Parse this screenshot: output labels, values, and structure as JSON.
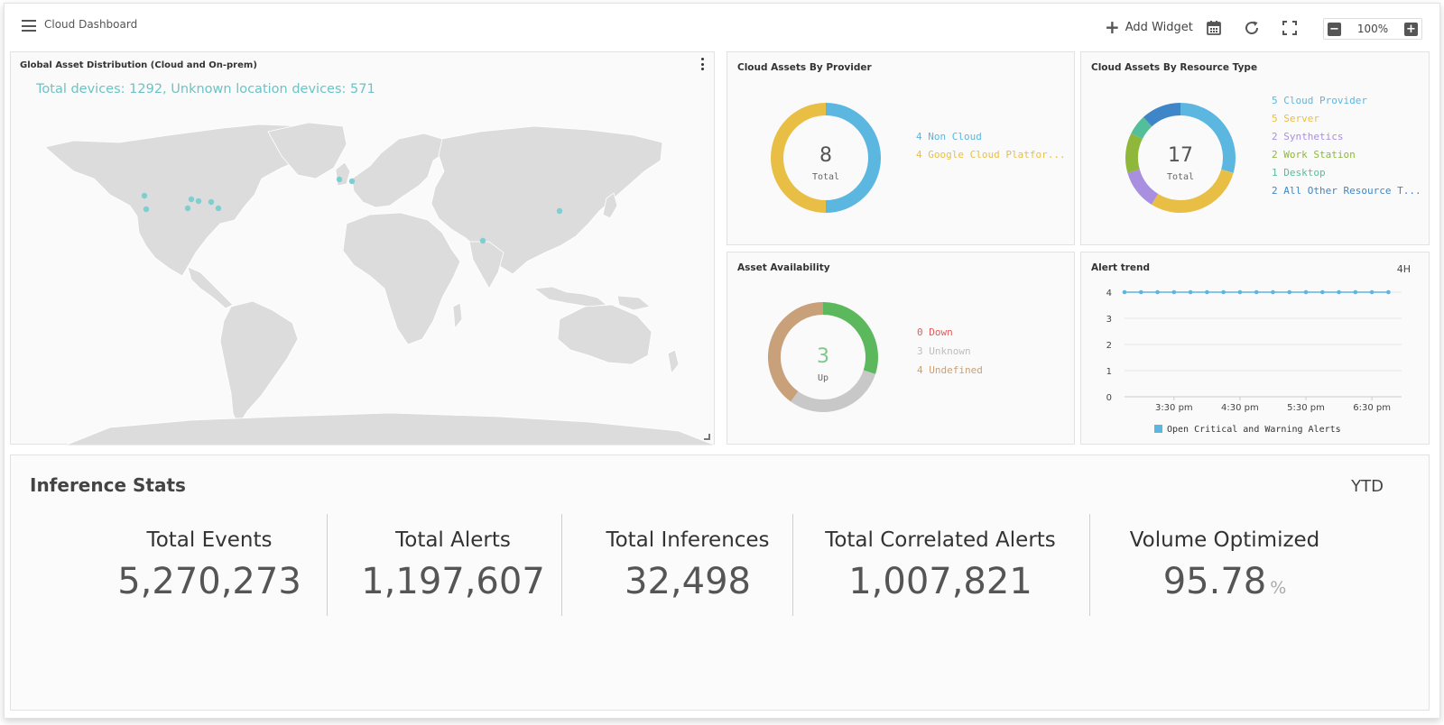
{
  "header": {
    "title": "Cloud Dashboard",
    "add_widget_label": "Add Widget",
    "zoom_value": "100%"
  },
  "icons": {
    "menu": "hamburger-icon",
    "add": "plus-icon",
    "calendar": "calendar-icon",
    "refresh": "refresh-icon",
    "fullscreen": "fullscreen-icon",
    "zoom_out": "minus-icon",
    "zoom_in": "plus-square-icon"
  },
  "map_panel": {
    "title": "Global Asset Distribution (Cloud and On-prem)",
    "summary": "Total devices: 1292, Unknown location devices: 571",
    "marker_color": "#7ecfcf"
  },
  "provider_panel": {
    "title": "Cloud Assets By Provider",
    "total": "8",
    "total_label": "Total",
    "legend": [
      {
        "text": "4 Non Cloud",
        "value": 4,
        "color": "#5bb6e0"
      },
      {
        "text": "4 Google Cloud Platfor...",
        "value": 4,
        "color": "#e8bf44"
      }
    ]
  },
  "restype_panel": {
    "title": "Cloud Assets By Resource Type",
    "total": "17",
    "total_label": "Total",
    "legend": [
      {
        "text": "5 Cloud Provider",
        "value": 5,
        "color": "#5bb6e0"
      },
      {
        "text": "5 Server",
        "value": 5,
        "color": "#e8bf44"
      },
      {
        "text": "2 Synthetics",
        "value": 2,
        "color": "#a98fe0"
      },
      {
        "text": "2 Work Station",
        "value": 2,
        "color": "#8fb83a"
      },
      {
        "text": "1 Desktop",
        "value": 1,
        "color": "#52bf9a"
      },
      {
        "text": "2 All Other Resource T...",
        "value": 2,
        "color": "#3f86c8"
      }
    ]
  },
  "availability_panel": {
    "title": "Asset Availability",
    "center_value": "3",
    "center_label": "Up",
    "legend": [
      {
        "text": "0 Down",
        "color": "#e05c5c"
      },
      {
        "text": "3 Unknown",
        "color": "#bdbdbd"
      },
      {
        "text": "4 Undefined",
        "color": "#c8a07a"
      }
    ],
    "segments": [
      {
        "name": "Up",
        "value": 3,
        "color": "#5cb85c"
      },
      {
        "name": "Unknown",
        "value": 3,
        "color": "#c8c8c8"
      },
      {
        "name": "Undefined",
        "value": 4,
        "color": "#c8a07a"
      }
    ]
  },
  "alert_panel": {
    "title": "Alert trend",
    "range": "4H",
    "legend_label": "Open Critical and Warning Alerts",
    "legend_color": "#5bb6e0"
  },
  "chart_data": {
    "type": "line",
    "title": "Alert trend",
    "xlabel": "",
    "ylabel": "",
    "ylim": [
      0,
      4
    ],
    "y_ticks": [
      "0",
      "1",
      "2",
      "3",
      "4"
    ],
    "x_ticks": [
      "3:30 pm",
      "4:30 pm",
      "5:30 pm",
      "6:30 pm"
    ],
    "x_tick_times": [
      3.5,
      4.5,
      5.5,
      6.5
    ],
    "xlim": [
      2.75,
      6.95
    ],
    "grid": true,
    "legend_position": "bottom",
    "series": [
      {
        "name": "Open Critical and Warning Alerts",
        "color": "#5bb6e0",
        "x": [
          2.75,
          3.0,
          3.25,
          3.5,
          3.75,
          4.0,
          4.25,
          4.5,
          4.75,
          5.0,
          5.25,
          5.5,
          5.75,
          6.0,
          6.25,
          6.5,
          6.75
        ],
        "values": [
          4,
          4,
          4,
          4,
          4,
          4,
          4,
          4,
          4,
          4,
          4,
          4,
          4,
          4,
          4,
          4,
          4
        ]
      }
    ]
  },
  "stats": {
    "title": "Inference Stats",
    "period": "YTD",
    "items": [
      {
        "label": "Total Events",
        "value": "5,270,273",
        "unit": ""
      },
      {
        "label": "Total Alerts",
        "value": "1,197,607",
        "unit": ""
      },
      {
        "label": "Total Inferences",
        "value": "32,498",
        "unit": ""
      },
      {
        "label": "Total Correlated Alerts",
        "value": "1,007,821",
        "unit": ""
      },
      {
        "label": "Volume Optimized",
        "value": "95.78",
        "unit": "%"
      }
    ]
  }
}
